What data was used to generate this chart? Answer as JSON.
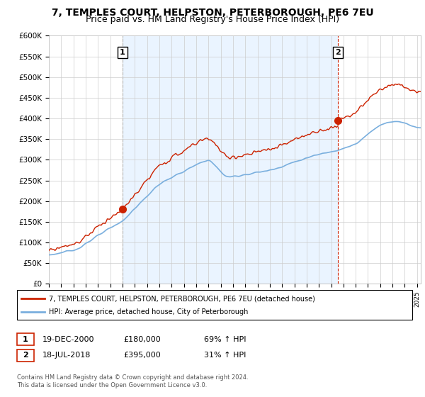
{
  "title": "7, TEMPLES COURT, HELPSTON, PETERBOROUGH, PE6 7EU",
  "subtitle": "Price paid vs. HM Land Registry's House Price Index (HPI)",
  "title_fontsize": 10,
  "subtitle_fontsize": 9,
  "ylabel_ticks": [
    "£0",
    "£50K",
    "£100K",
    "£150K",
    "£200K",
    "£250K",
    "£300K",
    "£350K",
    "£400K",
    "£450K",
    "£500K",
    "£550K",
    "£600K"
  ],
  "ytick_values": [
    0,
    50000,
    100000,
    150000,
    200000,
    250000,
    300000,
    350000,
    400000,
    450000,
    500000,
    550000,
    600000
  ],
  "ylim": [
    0,
    600000
  ],
  "xlim_start": 1995.0,
  "xlim_end": 2025.3,
  "hpi_color": "#7aafde",
  "price_color": "#cc2200",
  "shade_color": "#ddeeff",
  "marker1_date": 2001.0,
  "marker1_price": 180000,
  "marker2_date": 2018.55,
  "marker2_price": 395000,
  "legend_label1": "7, TEMPLES COURT, HELPSTON, PETERBOROUGH, PE6 7EU (detached house)",
  "legend_label2": "HPI: Average price, detached house, City of Peterborough",
  "annotation1_num": "1",
  "annotation1_date": "19-DEC-2000",
  "annotation1_price": "£180,000",
  "annotation1_hpi": "69% ↑ HPI",
  "annotation2_num": "2",
  "annotation2_date": "18-JUL-2018",
  "annotation2_price": "£395,000",
  "annotation2_hpi": "31% ↑ HPI",
  "footer": "Contains HM Land Registry data © Crown copyright and database right 2024.\nThis data is licensed under the Open Government Licence v3.0.",
  "background_color": "#ffffff",
  "grid_color": "#cccccc"
}
